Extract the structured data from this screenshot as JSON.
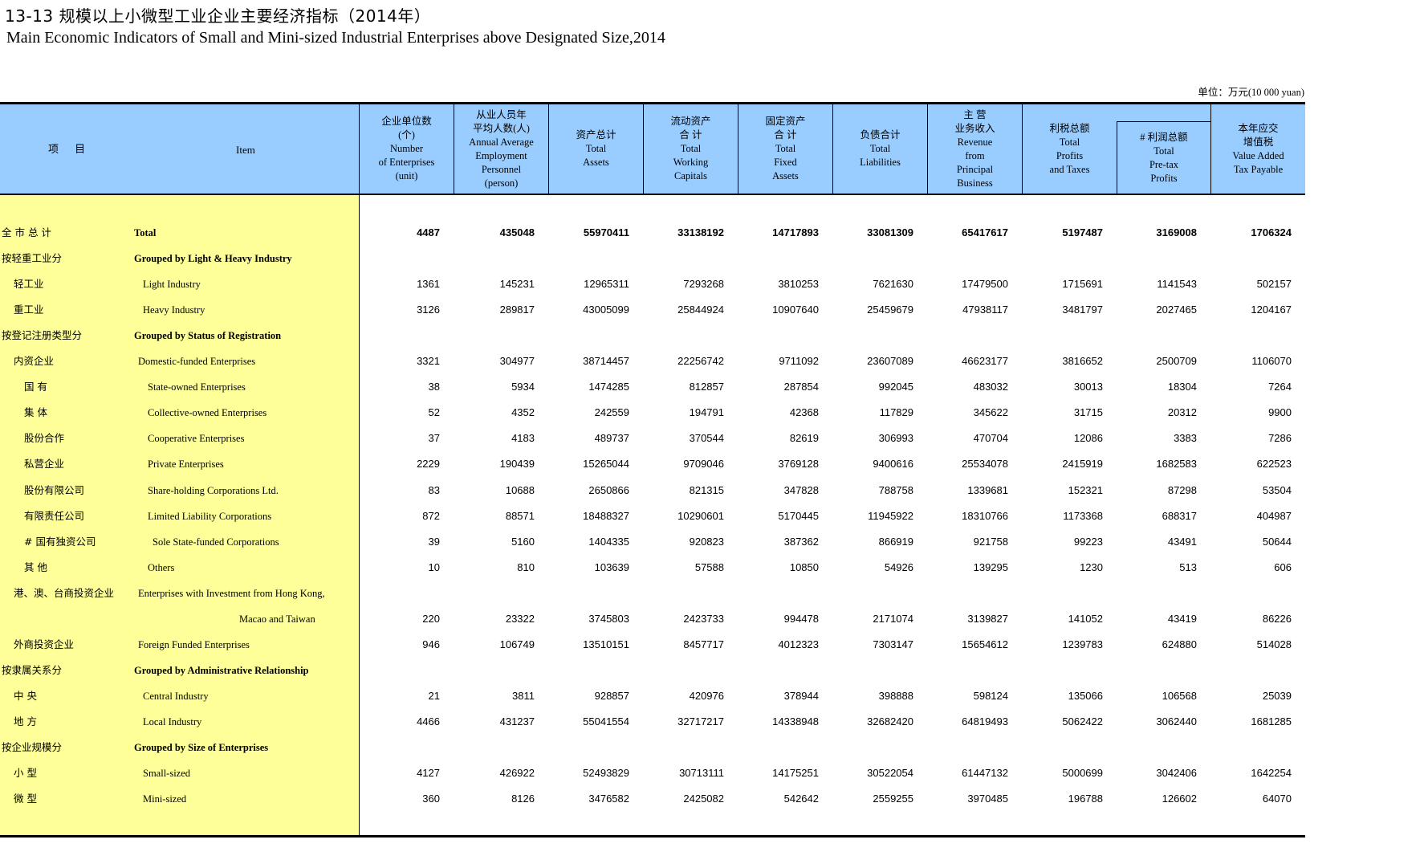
{
  "title_cn": "13-13    规模以上小微型工业企业主要经济指标（2014年）",
  "title_en": "Main Economic Indicators of Small and Mini-sized Industrial Enterprises above Designated Size,2014",
  "unit": "单位：万元(10 000 yuan)",
  "header": {
    "item_cn": "项 目",
    "item_en": "Item",
    "columns": [
      "企业单位数\n(个)\nNumber\nof Enterprises\n(unit)",
      "从业人员年\n平均人数(人)\nAnnual Average\nEmployment\nPersonnel\n(person)",
      "资产总计\nTotal\nAssets",
      "流动资产\n合 计\nTotal\nWorking\nCapitals",
      "固定资产\n合 计\nTotal\nFixed\nAssets",
      "负债合计\nTotal\nLiabilities",
      "主 营\n业务收入\nRevenue\nfrom\nPrincipal\nBusiness",
      "利税总额\nTotal\nProfits\nand Taxes",
      "# 利润总额\nTotal\nPre-tax\nProfits",
      "本年应交\n增值税\nValue Added\nTax Payable"
    ]
  },
  "rows": [
    {
      "cn": "全 市 总 计",
      "en": "Total",
      "style": "total",
      "values": [
        "4487",
        "435048",
        "55970411",
        "33138192",
        "14717893",
        "33081309",
        "65417617",
        "5197487",
        "3169008",
        "1706324"
      ]
    },
    {
      "cn": "按轻重工业分",
      "en": "Grouped by Light & Heavy Industry",
      "style": "group",
      "values": []
    },
    {
      "cn": "轻工业",
      "en": "Light Industry",
      "style": "l1",
      "values": [
        "1361",
        "145231",
        "12965311",
        "7293268",
        "3810253",
        "7621630",
        "17479500",
        "1715691",
        "1141543",
        "502157"
      ]
    },
    {
      "cn": "重工业",
      "en": "Heavy Industry",
      "style": "l1",
      "values": [
        "3126",
        "289817",
        "43005099",
        "25844924",
        "10907640",
        "25459679",
        "47938117",
        "3481797",
        "2027465",
        "1204167"
      ]
    },
    {
      "cn": "按登记注册类型分",
      "en": "Grouped by Status of Registration",
      "style": "group",
      "values": []
    },
    {
      "cn": "内资企业",
      "en": "Domestic-funded Enterprises",
      "style": "l1b",
      "values": [
        "3321",
        "304977",
        "38714457",
        "22256742",
        "9711092",
        "23607089",
        "46623177",
        "3816652",
        "2500709",
        "1106070"
      ]
    },
    {
      "cn": "国 有",
      "en": "State-owned Enterprises",
      "style": "l2",
      "values": [
        "38",
        "5934",
        "1474285",
        "812857",
        "287854",
        "992045",
        "483032",
        "30013",
        "18304",
        "7264"
      ]
    },
    {
      "cn": "集 体",
      "en": "Collective-owned Enterprises",
      "style": "l2",
      "values": [
        "52",
        "4352",
        "242559",
        "194791",
        "42368",
        "117829",
        "345622",
        "31715",
        "20312",
        "9900"
      ]
    },
    {
      "cn": "股份合作",
      "en": "Cooperative Enterprises",
      "style": "l2",
      "values": [
        "37",
        "4183",
        "489737",
        "370544",
        "82619",
        "306993",
        "470704",
        "12086",
        "3383",
        "7286"
      ]
    },
    {
      "cn": "私营企业",
      "en": "Private Enterprises",
      "style": "l2",
      "values": [
        "2229",
        "190439",
        "15265044",
        "9709046",
        "3769128",
        "9400616",
        "25534078",
        "2415919",
        "1682583",
        "622523"
      ]
    },
    {
      "cn": "股份有限公司",
      "en": "Share-holding Corporations Ltd.",
      "style": "l2",
      "values": [
        "83",
        "10688",
        "2650866",
        "821315",
        "347828",
        "788758",
        "1339681",
        "152321",
        "87298",
        "53504"
      ]
    },
    {
      "cn": "有限责任公司",
      "en": "Limited Liability Corporations",
      "style": "l2",
      "values": [
        "872",
        "88571",
        "18488327",
        "10290601",
        "5170445",
        "11945922",
        "18310766",
        "1173368",
        "688317",
        "404987"
      ]
    },
    {
      "cn": "# 国有独资公司",
      "en": "Sole State-funded Corporations",
      "style": "l2s",
      "values": [
        "39",
        "5160",
        "1404335",
        "920823",
        "387362",
        "866919",
        "921758",
        "99223",
        "43491",
        "50644"
      ]
    },
    {
      "cn": "其 他",
      "en": "Others",
      "style": "l2",
      "values": [
        "10",
        "810",
        "103639",
        "57588",
        "10850",
        "54926",
        "139295",
        "1230",
        "513",
        "606"
      ]
    },
    {
      "cn": "港、澳、台商投资企业",
      "en": "Enterprises with Investment from Hong Kong,",
      "style": "l1b",
      "values": []
    },
    {
      "cn": "",
      "en": "Macao and Taiwan",
      "style": "cont",
      "values": [
        "220",
        "23322",
        "3745803",
        "2423733",
        "994478",
        "2171074",
        "3139827",
        "141052",
        "43419",
        "86226"
      ]
    },
    {
      "cn": "外商投资企业",
      "en": "Foreign Funded Enterprises",
      "style": "l1b",
      "values": [
        "946",
        "106749",
        "13510151",
        "8457717",
        "4012323",
        "7303147",
        "15654612",
        "1239783",
        "624880",
        "514028"
      ]
    },
    {
      "cn": "按隶属关系分",
      "en": "Grouped by Administrative Relationship",
      "style": "group",
      "values": []
    },
    {
      "cn": "中 央",
      "en": "Central Industry",
      "style": "l1",
      "values": [
        "21",
        "3811",
        "928857",
        "420976",
        "378944",
        "398888",
        "598124",
        "135066",
        "106568",
        "25039"
      ]
    },
    {
      "cn": "地 方",
      "en": "Local Industry",
      "style": "l1",
      "values": [
        "4466",
        "431237",
        "55041554",
        "32717217",
        "14338948",
        "32682420",
        "64819493",
        "5062422",
        "3062440",
        "1681285"
      ]
    },
    {
      "cn": "按企业规模分",
      "en": "Grouped by Size of Enterprises",
      "style": "group",
      "values": []
    },
    {
      "cn": "小 型",
      "en": "Small-sized",
      "style": "l1",
      "values": [
        "4127",
        "426922",
        "52493829",
        "30713111",
        "14175251",
        "30522054",
        "61447132",
        "5000699",
        "3042406",
        "1642254"
      ]
    },
    {
      "cn": "微 型",
      "en": "Mini-sized",
      "style": "l1",
      "values": [
        "360",
        "8126",
        "3476582",
        "2425082",
        "542642",
        "2559255",
        "3970485",
        "196788",
        "126602",
        "64070"
      ]
    }
  ],
  "colors": {
    "header_bg": "#99ccff",
    "item_bg": "#ffff99"
  }
}
